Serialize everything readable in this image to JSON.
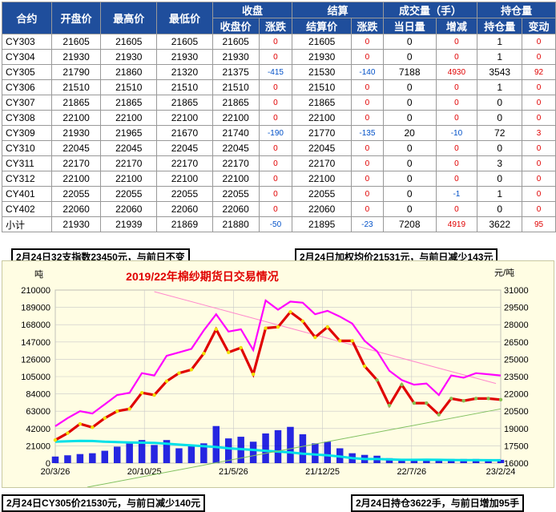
{
  "table": {
    "header_top": [
      "合约",
      "开盘价",
      "最高价",
      "最低价",
      "收盘",
      "结算",
      "成交量（手）",
      "持仓量"
    ],
    "header_sub": [
      "收盘价",
      "涨跌",
      "结算价",
      "涨跌",
      "当日量",
      "增减",
      "持仓量",
      "变动"
    ],
    "rows": [
      {
        "code": "CY303",
        "open": "21605",
        "high": "21605",
        "low": "21605",
        "close": "21605",
        "close_chg": "0",
        "settle": "21605",
        "settle_chg": "0",
        "vol": "0",
        "vol_chg": "0",
        "oi": "1",
        "oi_chg": "0"
      },
      {
        "code": "CY304",
        "open": "21930",
        "high": "21930",
        "low": "21930",
        "close": "21930",
        "close_chg": "0",
        "settle": "21930",
        "settle_chg": "0",
        "vol": "0",
        "vol_chg": "0",
        "oi": "1",
        "oi_chg": "0"
      },
      {
        "code": "CY305",
        "open": "21790",
        "high": "21860",
        "low": "21320",
        "close": "21375",
        "close_chg": "-415",
        "settle": "21530",
        "settle_chg": "-140",
        "vol": "7188",
        "vol_chg": "4930",
        "oi": "3543",
        "oi_chg": "92"
      },
      {
        "code": "CY306",
        "open": "21510",
        "high": "21510",
        "low": "21510",
        "close": "21510",
        "close_chg": "0",
        "settle": "21510",
        "settle_chg": "0",
        "vol": "0",
        "vol_chg": "0",
        "oi": "1",
        "oi_chg": "0"
      },
      {
        "code": "CY307",
        "open": "21865",
        "high": "21865",
        "low": "21865",
        "close": "21865",
        "close_chg": "0",
        "settle": "21865",
        "settle_chg": "0",
        "vol": "0",
        "vol_chg": "0",
        "oi": "0",
        "oi_chg": "0"
      },
      {
        "code": "CY308",
        "open": "22100",
        "high": "22100",
        "low": "22100",
        "close": "22100",
        "close_chg": "0",
        "settle": "22100",
        "settle_chg": "0",
        "vol": "0",
        "vol_chg": "0",
        "oi": "0",
        "oi_chg": "0"
      },
      {
        "code": "CY309",
        "open": "21930",
        "high": "21965",
        "low": "21670",
        "close": "21740",
        "close_chg": "-190",
        "settle": "21770",
        "settle_chg": "-135",
        "vol": "20",
        "vol_chg": "-10",
        "oi": "72",
        "oi_chg": "3"
      },
      {
        "code": "CY310",
        "open": "22045",
        "high": "22045",
        "low": "22045",
        "close": "22045",
        "close_chg": "0",
        "settle": "22045",
        "settle_chg": "0",
        "vol": "0",
        "vol_chg": "0",
        "oi": "0",
        "oi_chg": "0"
      },
      {
        "code": "CY311",
        "open": "22170",
        "high": "22170",
        "low": "22170",
        "close": "22170",
        "close_chg": "0",
        "settle": "22170",
        "settle_chg": "0",
        "vol": "0",
        "vol_chg": "0",
        "oi": "3",
        "oi_chg": "0"
      },
      {
        "code": "CY312",
        "open": "22100",
        "high": "22100",
        "low": "22100",
        "close": "22100",
        "close_chg": "0",
        "settle": "22100",
        "settle_chg": "0",
        "vol": "0",
        "vol_chg": "0",
        "oi": "0",
        "oi_chg": "0"
      },
      {
        "code": "CY401",
        "open": "22055",
        "high": "22055",
        "low": "22055",
        "close": "22055",
        "close_chg": "0",
        "settle": "22055",
        "settle_chg": "0",
        "vol": "0",
        "vol_chg": "-1",
        "oi": "1",
        "oi_chg": "0"
      },
      {
        "code": "CY402",
        "open": "22060",
        "high": "22060",
        "low": "22060",
        "close": "22060",
        "close_chg": "0",
        "settle": "22060",
        "settle_chg": "0",
        "vol": "0",
        "vol_chg": "0",
        "oi": "0",
        "oi_chg": "0"
      },
      {
        "code": "小计",
        "open": "21930",
        "high": "21939",
        "low": "21869",
        "close": "21880",
        "close_chg": "-50",
        "settle": "21895",
        "settle_chg": "-23",
        "vol": "7208",
        "vol_chg": "4919",
        "oi": "3622",
        "oi_chg": "95"
      }
    ]
  },
  "notes": {
    "index": "2月24日32支指数23450元，与前日不变",
    "avg_price": "2月24日加权均价21531元，与前日减少143元",
    "cy305": "2月24日CY305价21530元，与前日减少140元",
    "open_interest": "2月24日持仓3622手，与前日增加95手"
  },
  "chart_data": {
    "type": "line",
    "title": "2019/22年棉纱期货日交易情况",
    "left_unit": "吨",
    "right_unit": "元/吨",
    "y_left_ticks": [
      "210000",
      "189000",
      "168000",
      "147000",
      "126000",
      "105000",
      "84000",
      "63000",
      "42000",
      "21000",
      "0"
    ],
    "y_right_ticks": [
      "31000",
      "29500",
      "28000",
      "26500",
      "25000",
      "23500",
      "22000",
      "20500",
      "19000",
      "17500",
      "16000"
    ],
    "ylim_left": [
      0,
      210000
    ],
    "ylim_right": [
      16000,
      31000
    ],
    "x_ticks": [
      "20/3/26",
      "20/10/25",
      "21/5/26",
      "21/12/25",
      "22/7/26",
      "23/2/24"
    ],
    "grid": true,
    "colors": {
      "price": "#e00000",
      "price_dots": "#f0e000",
      "pink": "#ff00ff",
      "green": "#88c050",
      "volume": "#0000e0",
      "cyan": "#00e0e8",
      "trend_pink": "#ff88cc",
      "trend_green": "#80c060"
    },
    "series": [
      {
        "values": [
          18000,
          18600,
          19400,
          19100,
          19900,
          20500,
          20700,
          22100,
          21900,
          23100,
          23800,
          24100,
          25500,
          27600,
          25600,
          26000,
          23700,
          27700,
          27800,
          29100,
          28300,
          26900,
          27800,
          26600,
          26600,
          24400,
          23200,
          21000,
          22800,
          21200,
          21200,
          20200,
          21600,
          21400,
          21600,
          21600,
          21500
        ]
      },
      {
        "values": [
          19200,
          19900,
          20500,
          20300,
          21100,
          21900,
          22100,
          23800,
          23600,
          25300,
          25600,
          25900,
          27500,
          28900,
          27400,
          27600,
          25800,
          30100,
          29300,
          30000,
          29900,
          28900,
          29200,
          28700,
          28100,
          26600,
          25700,
          24000,
          23200,
          22800,
          22900,
          21900,
          23600,
          23400,
          23800,
          23700,
          23600
        ]
      },
      {
        "values": [
          8000,
          9500,
          11000,
          12000,
          15000,
          20000,
          25000,
          28000,
          22000,
          28000,
          18000,
          22000,
          24000,
          45000,
          30000,
          32000,
          26000,
          36000,
          40000,
          44000,
          35000,
          24000,
          26000,
          18000,
          12000,
          10000,
          9000,
          6000,
          5000,
          5000,
          5000,
          4000,
          5000,
          5000,
          5000,
          4500,
          4000
        ]
      },
      {
        "values": [
          26000,
          26500,
          27000,
          26800,
          26000,
          25500,
          25000,
          24800,
          24500,
          23500,
          22500,
          21500,
          20500,
          19500,
          18000,
          17000,
          16000,
          15000,
          14000,
          13000,
          11500,
          10500,
          9500,
          8000,
          6000,
          5000,
          5000,
          4500,
          4000,
          4000,
          4200,
          4000,
          3800,
          3600,
          3600,
          3500,
          3500
        ]
      }
    ]
  }
}
